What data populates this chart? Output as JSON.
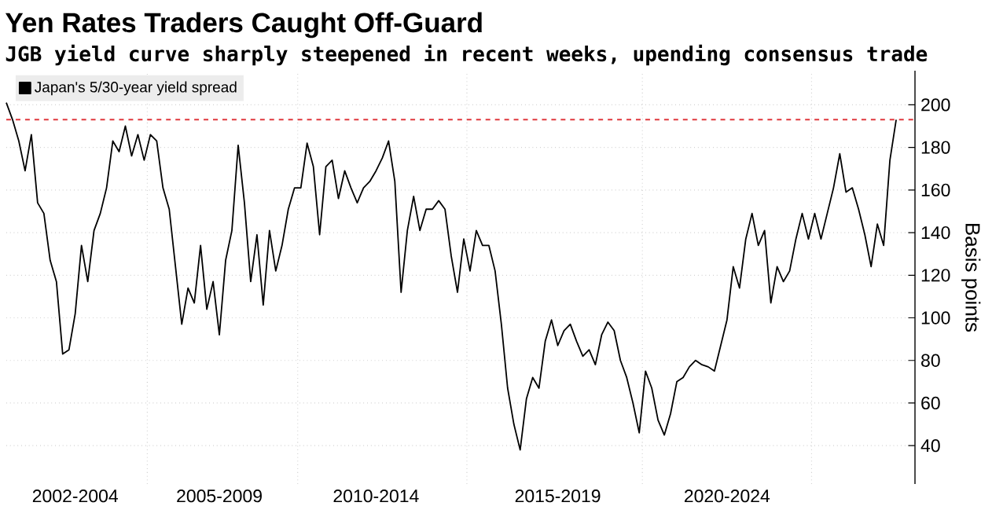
{
  "chart_data": {
    "type": "line",
    "title": "Yen Rates Traders Caught Off-Guard",
    "subtitle": "JGB yield curve sharply steepened in recent weeks, upending consensus trade",
    "ylabel": "Basis points",
    "categories": [
      null,
      null,
      null,
      null,
      null,
      null,
      null,
      null,
      null,
      null,
      null,
      "2002-2004",
      null,
      null,
      null,
      null,
      null,
      null,
      null,
      null,
      null,
      null,
      null,
      null,
      null,
      null,
      null,
      null,
      null,
      null,
      null,
      null,
      null,
      null,
      "2005-2009",
      null,
      null,
      null,
      null,
      null,
      null,
      null,
      null,
      null,
      null,
      null,
      null,
      null,
      null,
      null,
      null,
      null,
      null,
      null,
      null,
      null,
      null,
      null,
      null,
      "2010-2014",
      null,
      null,
      null,
      null,
      null,
      null,
      null,
      null,
      null,
      null,
      null,
      null,
      null,
      null,
      null,
      null,
      null,
      null,
      null,
      null,
      null,
      null,
      null,
      null,
      null,
      null,
      null,
      null,
      "2015-2019",
      null,
      null,
      null,
      null,
      null,
      null,
      null,
      null,
      null,
      null,
      null,
      null,
      null,
      null,
      null,
      null,
      null,
      null,
      null,
      null,
      null,
      null,
      null,
      null,
      null,
      null,
      "2020-2024",
      null,
      null,
      null,
      null,
      null,
      null,
      null,
      null,
      null,
      null,
      null,
      null,
      null,
      null,
      null,
      null,
      null,
      null,
      null,
      null,
      null,
      null,
      null,
      null,
      null,
      null,
      null
    ],
    "series": [
      {
        "name": "Japan's 5/30-year yield spread",
        "color": "#000000",
        "values": [
          201,
          193,
          183,
          169,
          186,
          154,
          149,
          127,
          117,
          83,
          85,
          102,
          134,
          117,
          141,
          149,
          161,
          183,
          178,
          190,
          176,
          186,
          174,
          186,
          183,
          161,
          151,
          124,
          97,
          114,
          107,
          134,
          104,
          117,
          92,
          127,
          141,
          181,
          154,
          117,
          139,
          106,
          141,
          122,
          134,
          151,
          161,
          161,
          182,
          171,
          139,
          171,
          174,
          156,
          169,
          161,
          154,
          161,
          164,
          169,
          175,
          183,
          164,
          112,
          141,
          157,
          141,
          151,
          151,
          155,
          151,
          129,
          112,
          137,
          122,
          141,
          134,
          134,
          122,
          97,
          67,
          50,
          38,
          62,
          72,
          67,
          89,
          99,
          87,
          94,
          97,
          89,
          82,
          85,
          78,
          92,
          98,
          94,
          80,
          72,
          60,
          46,
          75,
          67,
          52,
          45,
          55,
          70,
          72,
          77,
          80,
          78,
          77,
          75,
          87,
          99,
          124,
          114,
          137,
          149,
          134,
          141,
          107,
          124,
          117,
          122,
          137,
          149,
          137,
          149,
          137,
          149,
          161,
          177,
          159,
          161,
          151,
          139,
          124,
          144,
          134,
          174,
          193
        ]
      }
    ],
    "ylim": [
      22,
      216
    ],
    "yticks": [
      40,
      60,
      80,
      100,
      120,
      140,
      160,
      180,
      200
    ],
    "ref_lines": [
      {
        "axis": "y",
        "value": 193,
        "color": "#e0393e",
        "line_style": "dashed"
      }
    ],
    "grid": true,
    "legend": "top left",
    "line_style": "solid",
    "marker": "none"
  }
}
